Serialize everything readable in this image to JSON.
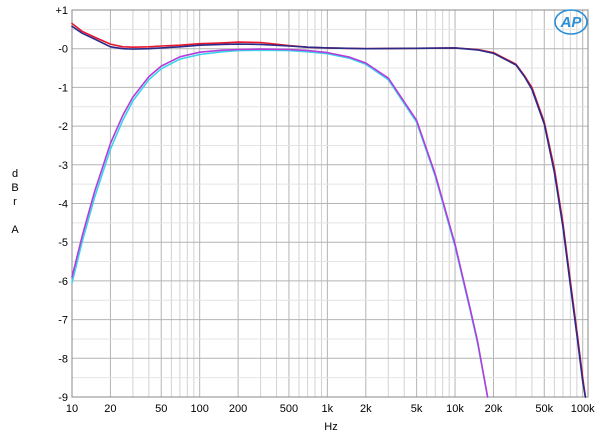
{
  "chart_data": {
    "type": "line",
    "title": "",
    "xlabel": "Hz",
    "ylabel": [
      "d",
      "B",
      "r",
      "",
      "A"
    ],
    "xscale": "log",
    "xlim": [
      10,
      110000
    ],
    "ylim": [
      -9,
      1
    ],
    "grid": true,
    "x_ticks": [
      10,
      20,
      50,
      100,
      200,
      500,
      1000,
      2000,
      5000,
      10000,
      20000,
      50000,
      100000
    ],
    "x_tick_labels": [
      "10",
      "20",
      "50",
      "100",
      "200",
      "500",
      "1k",
      "2k",
      "5k",
      "10k",
      "20k",
      "50k",
      "100k"
    ],
    "y_ticks": [
      1,
      0,
      -1,
      -2,
      -3,
      -4,
      -5,
      -6,
      -7,
      -8,
      -9
    ],
    "y_tick_labels": [
      "+1",
      "-0",
      "-1",
      "-2",
      "-3",
      "-4",
      "-5",
      "-6",
      "-7",
      "-8",
      "-9"
    ],
    "series": [
      {
        "color": "#e8162c",
        "x": [
          10,
          12,
          15,
          20,
          25,
          30,
          40,
          50,
          70,
          100,
          150,
          200,
          300,
          500,
          700,
          1000,
          2000,
          5000,
          10000,
          15000,
          20000,
          30000,
          35000,
          40000,
          50000,
          60000,
          70000,
          80000,
          90000,
          100000,
          105000
        ],
        "y": [
          0.65,
          0.45,
          0.3,
          0.12,
          0.05,
          0.04,
          0.05,
          0.07,
          0.09,
          0.13,
          0.15,
          0.17,
          0.16,
          0.08,
          0.04,
          0.02,
          0.0,
          0.01,
          0.02,
          -0.02,
          -0.1,
          -0.4,
          -0.7,
          -1.0,
          -1.9,
          -3.1,
          -4.5,
          -6.0,
          -7.3,
          -8.5,
          -9.0
        ]
      },
      {
        "color": "#2a2a8a",
        "x": [
          10,
          12,
          15,
          20,
          25,
          30,
          40,
          50,
          70,
          100,
          150,
          200,
          300,
          500,
          700,
          1000,
          2000,
          5000,
          10000,
          15000,
          20000,
          30000,
          35000,
          40000,
          50000,
          60000,
          70000,
          80000,
          90000,
          100000,
          105000
        ],
        "y": [
          0.58,
          0.4,
          0.25,
          0.05,
          0.0,
          -0.01,
          0.0,
          0.02,
          0.05,
          0.09,
          0.11,
          0.12,
          0.11,
          0.07,
          0.04,
          0.02,
          0.0,
          0.01,
          0.02,
          -0.03,
          -0.12,
          -0.42,
          -0.72,
          -1.05,
          -1.95,
          -3.2,
          -4.6,
          -6.1,
          -7.4,
          -8.6,
          -9.0
        ]
      },
      {
        "color": "#38d4e8",
        "x": [
          10,
          12,
          15,
          20,
          25,
          30,
          40,
          50,
          70,
          100,
          150,
          200,
          300,
          500,
          700,
          1000,
          1500,
          2000,
          3000,
          5000,
          7000,
          10000,
          13000,
          15000,
          18000
        ],
        "y": [
          -6.05,
          -5.0,
          -3.85,
          -2.6,
          -1.85,
          -1.35,
          -0.8,
          -0.52,
          -0.27,
          -0.15,
          -0.08,
          -0.05,
          -0.04,
          -0.05,
          -0.08,
          -0.13,
          -0.25,
          -0.4,
          -0.8,
          -1.9,
          -3.3,
          -5.1,
          -6.7,
          -7.6,
          -9.0
        ]
      },
      {
        "color": "#b43cdc",
        "x": [
          10,
          12,
          15,
          20,
          25,
          30,
          40,
          50,
          70,
          100,
          150,
          200,
          300,
          500,
          700,
          1000,
          1500,
          2000,
          3000,
          5000,
          7000,
          10000,
          13000,
          15000,
          18000
        ],
        "y": [
          -5.9,
          -4.85,
          -3.7,
          -2.45,
          -1.72,
          -1.25,
          -0.72,
          -0.45,
          -0.21,
          -0.09,
          -0.04,
          -0.02,
          -0.01,
          -0.02,
          -0.05,
          -0.1,
          -0.22,
          -0.37,
          -0.76,
          -1.85,
          -3.25,
          -5.05,
          -6.65,
          -7.55,
          -9.0
        ]
      }
    ]
  },
  "logo": {
    "text": "AP",
    "color": "#2a8fd8"
  }
}
